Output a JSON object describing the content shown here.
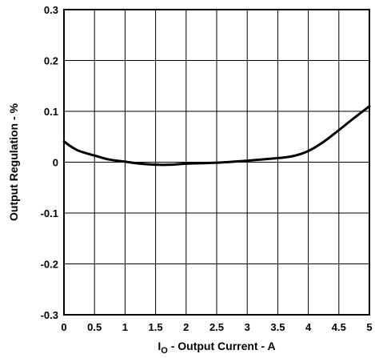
{
  "chart_data": {
    "type": "line",
    "title": "",
    "xlabel_prefix": "I",
    "xlabel_sub": "O",
    "xlabel_rest": " - Output Current - A",
    "ylabel": "Output Regulation - %",
    "xlim": [
      0,
      5
    ],
    "ylim": [
      -0.3,
      0.3
    ],
    "grid": true,
    "x_ticks": [
      "0",
      "0.5",
      "1",
      "1.5",
      "2",
      "2.5",
      "3",
      "3.5",
      "4",
      "4.5",
      "5"
    ],
    "y_ticks": [
      "0.3",
      "0.2",
      "0.1",
      "0",
      "-0.1",
      "-0.2",
      "-0.3"
    ],
    "series": [
      {
        "x": [
          0,
          0.1,
          0.25,
          0.5,
          0.75,
          1.0,
          1.25,
          1.5,
          1.75,
          2.0,
          2.5,
          3.0,
          3.5,
          3.75,
          4.0,
          4.25,
          4.5,
          4.75,
          5.0
        ],
        "y": [
          0.041,
          0.032,
          0.022,
          0.013,
          0.005,
          0.001,
          -0.003,
          -0.005,
          -0.005,
          -0.003,
          -0.001,
          0.003,
          0.008,
          0.012,
          0.022,
          0.04,
          0.063,
          0.087,
          0.11
        ]
      }
    ]
  }
}
